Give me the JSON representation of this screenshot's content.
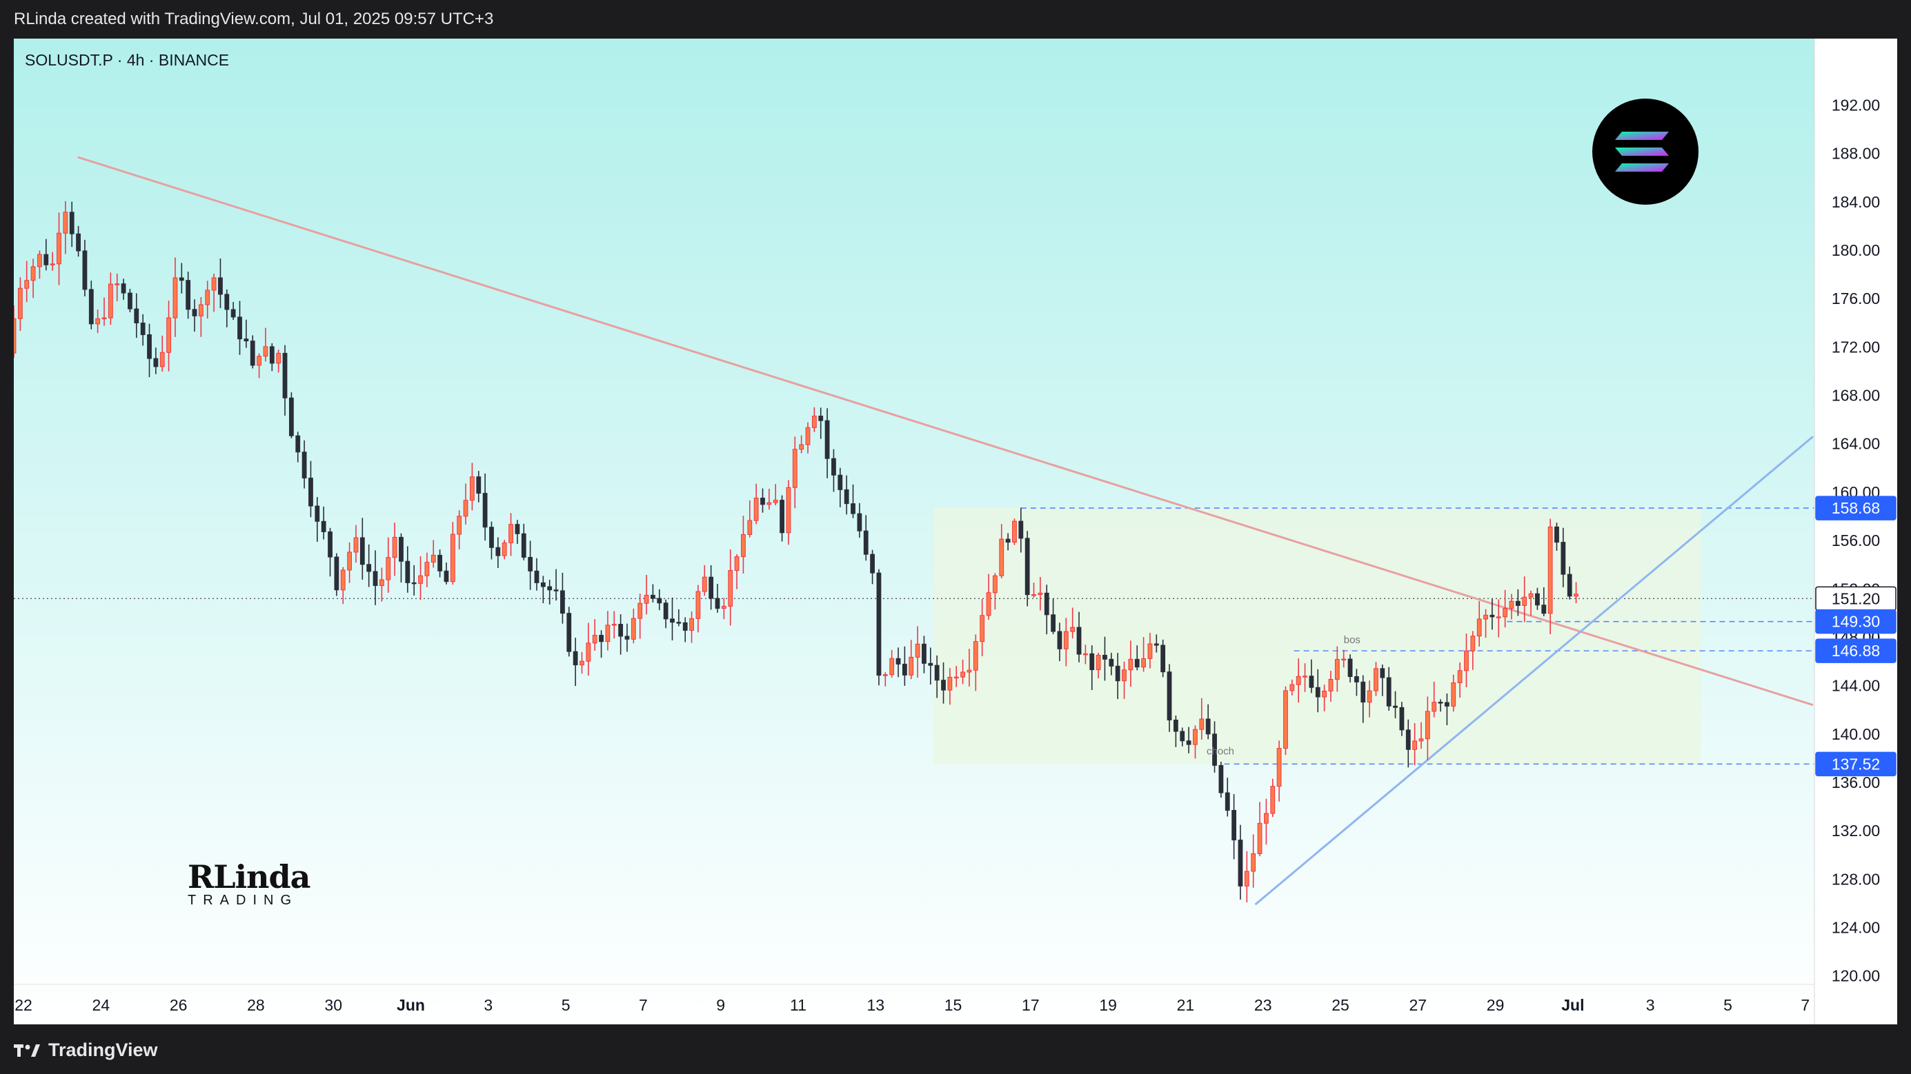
{
  "header": {
    "caption": "RLinda created with TradingView.com, Jul 01, 2025 09:57 UTC+3"
  },
  "symbol": {
    "label": "SOLUSDT.P · 4h · BINANCE"
  },
  "footer": {
    "brand": "TradingView"
  },
  "watermark": {
    "main": "RLinda",
    "sub": "TRADING"
  },
  "colors": {
    "up": "#f23645",
    "up_fill": "#ff7b4a",
    "down": "#2a2e39",
    "trend_down": "#e8a0a0",
    "trend_up": "#8fb6f0",
    "level": "#2962ff",
    "bg_top": "#b2f0ec",
    "bg_bottom": "#ffffff",
    "zone": "#eaf7e4"
  },
  "chart_data": {
    "type": "candlestick",
    "ylim": [
      119.3,
      197.5
    ],
    "yticks": [
      "192.00",
      "188.00",
      "184.00",
      "180.00",
      "176.00",
      "172.00",
      "168.00",
      "164.00",
      "160.00",
      "156.00",
      "152.00",
      "148.00",
      "144.00",
      "140.00",
      "136.00",
      "132.00",
      "128.00",
      "124.00",
      "120.00"
    ],
    "xticks": [
      "22",
      "24",
      "26",
      "28",
      "30",
      "Jun",
      "3",
      "5",
      "7",
      "9",
      "11",
      "13",
      "15",
      "17",
      "19",
      "21",
      "23",
      "25",
      "27",
      "29",
      "Jul",
      "3",
      "5",
      "7"
    ],
    "xtick_days": [
      -9,
      -7,
      -5,
      -3,
      -1,
      1,
      3,
      5,
      7,
      9,
      11,
      13,
      15,
      17,
      19,
      21,
      23,
      25,
      27,
      29,
      31,
      33,
      35,
      37
    ],
    "x_start_day": -9.25,
    "x_end_day": 37.2,
    "price_tags": [
      {
        "label": "158.68",
        "value": 158.68,
        "style": "level"
      },
      {
        "label": "151.20",
        "value": 151.2,
        "style": "current"
      },
      {
        "label": "149.30",
        "value": 149.3,
        "style": "level"
      },
      {
        "label": "146.88",
        "value": 146.88,
        "style": "level"
      },
      {
        "label": "137.52",
        "value": 137.52,
        "style": "level"
      }
    ],
    "hidden_tag": "148.00",
    "current_price": 151.2,
    "annotations": [
      {
        "text": "bos",
        "day": 25.3,
        "price": 147.5
      },
      {
        "text": "choch",
        "day": 21.9,
        "price": 138.3
      }
    ],
    "trendlines": [
      {
        "name": "descending",
        "from": {
          "day": -7.6,
          "price": 187.7
        },
        "to": {
          "day": 37.2,
          "price": 142.4
        }
      },
      {
        "name": "ascending",
        "from": {
          "day": 22.8,
          "price": 125.9
        },
        "to": {
          "day": 37.2,
          "price": 164.6
        }
      }
    ],
    "zone": {
      "day_from": 14.5,
      "day_to": 26.8,
      "price_low": 137.5,
      "price_high": 158.7,
      "extend_to_day": 34.3
    },
    "levels_start_day": {
      "158.68": 16.75,
      "149.30": 29.3,
      "146.88": 23.8,
      "137.52": 22.0
    },
    "anchors": [
      {
        "day": -9.25,
        "price": 171.5
      },
      {
        "day": -8.9,
        "price": 177.5
      },
      {
        "day": -8.4,
        "price": 179.5
      },
      {
        "day": -8.0,
        "price": 178.6
      },
      {
        "day": -7.85,
        "price": 184.8
      },
      {
        "day": -7.6,
        "price": 182.0
      },
      {
        "day": -7.4,
        "price": 179.5
      },
      {
        "day": -7.15,
        "price": 173.8
      },
      {
        "day": -6.85,
        "price": 174.0
      },
      {
        "day": -6.5,
        "price": 177.5
      },
      {
        "day": -6.2,
        "price": 176.0
      },
      {
        "day": -5.9,
        "price": 174.0
      },
      {
        "day": -5.65,
        "price": 171.3
      },
      {
        "day": -5.35,
        "price": 170.2
      },
      {
        "day": -5.1,
        "price": 174.5
      },
      {
        "day": -4.85,
        "price": 178.0
      },
      {
        "day": -4.55,
        "price": 175.5
      },
      {
        "day": -4.3,
        "price": 174.5
      },
      {
        "day": -4.0,
        "price": 178.5
      },
      {
        "day": -3.7,
        "price": 176.0
      },
      {
        "day": -3.4,
        "price": 173.8
      },
      {
        "day": -3.1,
        "price": 172.5
      },
      {
        "day": -2.9,
        "price": 169.8
      },
      {
        "day": -2.7,
        "price": 172.5
      },
      {
        "day": -2.45,
        "price": 170.5
      },
      {
        "day": -2.25,
        "price": 171.5
      },
      {
        "day": -2.05,
        "price": 167.5
      },
      {
        "day": -1.85,
        "price": 164.0
      },
      {
        "day": -1.5,
        "price": 161.0
      },
      {
        "day": -1.3,
        "price": 157.5
      },
      {
        "day": -1.0,
        "price": 156.0
      },
      {
        "day": -0.75,
        "price": 152.5
      },
      {
        "day": -0.5,
        "price": 154.5
      },
      {
        "day": -0.3,
        "price": 156.0
      },
      {
        "day": 0.0,
        "price": 154.0
      },
      {
        "day": 0.3,
        "price": 152.0
      },
      {
        "day": 0.5,
        "price": 153.5
      },
      {
        "day": 0.8,
        "price": 156.0
      },
      {
        "day": 1.05,
        "price": 152.5
      },
      {
        "day": 1.3,
        "price": 152.0
      },
      {
        "day": 1.6,
        "price": 155.0
      },
      {
        "day": 1.85,
        "price": 153.5
      },
      {
        "day": 2.1,
        "price": 152.5
      },
      {
        "day": 2.3,
        "price": 157.0
      },
      {
        "day": 2.55,
        "price": 159.5
      },
      {
        "day": 2.8,
        "price": 161.0
      },
      {
        "day": 3.1,
        "price": 157.0
      },
      {
        "day": 3.4,
        "price": 155.0
      },
      {
        "day": 3.75,
        "price": 157.0
      },
      {
        "day": 4.0,
        "price": 155.5
      },
      {
        "day": 4.25,
        "price": 154.0
      },
      {
        "day": 4.55,
        "price": 152.5
      },
      {
        "day": 4.9,
        "price": 151.5
      },
      {
        "day": 5.2,
        "price": 148.0
      },
      {
        "day": 5.45,
        "price": 145.0
      },
      {
        "day": 5.75,
        "price": 148.0
      },
      {
        "day": 6.1,
        "price": 147.5
      },
      {
        "day": 6.45,
        "price": 149.5
      },
      {
        "day": 6.75,
        "price": 147.5
      },
      {
        "day": 7.1,
        "price": 151.5
      },
      {
        "day": 7.5,
        "price": 150.5
      },
      {
        "day": 7.9,
        "price": 149.5
      },
      {
        "day": 8.3,
        "price": 148.5
      },
      {
        "day": 8.7,
        "price": 153.0
      },
      {
        "day": 9.2,
        "price": 150.5
      },
      {
        "day": 9.55,
        "price": 155.0
      },
      {
        "day": 9.8,
        "price": 156.0
      },
      {
        "day": 10.1,
        "price": 160.0
      },
      {
        "day": 10.35,
        "price": 158.0
      },
      {
        "day": 10.55,
        "price": 159.5
      },
      {
        "day": 10.75,
        "price": 157.0
      },
      {
        "day": 11.0,
        "price": 163.0
      },
      {
        "day": 11.25,
        "price": 164.5
      },
      {
        "day": 11.5,
        "price": 166.5
      },
      {
        "day": 11.7,
        "price": 167.3
      },
      {
        "day": 11.85,
        "price": 163.5
      },
      {
        "day": 12.1,
        "price": 161.0
      },
      {
        "day": 12.4,
        "price": 159.5
      },
      {
        "day": 12.7,
        "price": 157.5
      },
      {
        "day": 12.95,
        "price": 154.0
      },
      {
        "day": 13.15,
        "price": 152.5
      },
      {
        "day": 13.25,
        "price": 144.5
      },
      {
        "day": 13.6,
        "price": 146.0
      },
      {
        "day": 13.95,
        "price": 145.5
      },
      {
        "day": 14.3,
        "price": 147.0
      },
      {
        "day": 14.6,
        "price": 145.0
      },
      {
        "day": 14.95,
        "price": 144.0
      },
      {
        "day": 15.3,
        "price": 145.5
      },
      {
        "day": 15.6,
        "price": 146.0
      },
      {
        "day": 15.9,
        "price": 150.0
      },
      {
        "day": 16.2,
        "price": 153.0
      },
      {
        "day": 16.45,
        "price": 156.0
      },
      {
        "day": 16.7,
        "price": 157.0
      },
      {
        "day": 16.95,
        "price": 156.5
      },
      {
        "day": 17.1,
        "price": 151.5
      },
      {
        "day": 17.35,
        "price": 152.5
      },
      {
        "day": 17.6,
        "price": 149.0
      },
      {
        "day": 17.9,
        "price": 147.5
      },
      {
        "day": 18.2,
        "price": 148.5
      },
      {
        "day": 18.5,
        "price": 146.5
      },
      {
        "day": 18.8,
        "price": 145.5
      },
      {
        "day": 19.1,
        "price": 146.5
      },
      {
        "day": 19.4,
        "price": 144.0
      },
      {
        "day": 19.7,
        "price": 146.0
      },
      {
        "day": 20.0,
        "price": 145.0
      },
      {
        "day": 20.25,
        "price": 147.5
      },
      {
        "day": 20.5,
        "price": 148.0
      },
      {
        "day": 20.7,
        "price": 142.0
      },
      {
        "day": 20.9,
        "price": 140.5
      },
      {
        "day": 21.2,
        "price": 139.5
      },
      {
        "day": 21.45,
        "price": 140.5
      },
      {
        "day": 21.7,
        "price": 141.0
      },
      {
        "day": 21.9,
        "price": 137.0
      },
      {
        "day": 22.1,
        "price": 135.0
      },
      {
        "day": 22.35,
        "price": 132.5
      },
      {
        "day": 22.55,
        "price": 127.5
      },
      {
        "day": 22.8,
        "price": 128.5
      },
      {
        "day": 23.0,
        "price": 131.5
      },
      {
        "day": 23.25,
        "price": 134.0
      },
      {
        "day": 23.5,
        "price": 135.5
      },
      {
        "day": 23.6,
        "price": 139.0
      },
      {
        "day": 23.75,
        "price": 143.0
      },
      {
        "day": 24.0,
        "price": 144.0
      },
      {
        "day": 24.3,
        "price": 145.0
      },
      {
        "day": 24.6,
        "price": 143.5
      },
      {
        "day": 24.9,
        "price": 145.0
      },
      {
        "day": 25.2,
        "price": 146.0
      },
      {
        "day": 25.5,
        "price": 145.0
      },
      {
        "day": 25.8,
        "price": 143.0
      },
      {
        "day": 26.1,
        "price": 145.0
      },
      {
        "day": 26.4,
        "price": 143.0
      },
      {
        "day": 26.6,
        "price": 142.0
      },
      {
        "day": 26.8,
        "price": 139.0
      },
      {
        "day": 27.0,
        "price": 138.5
      },
      {
        "day": 27.3,
        "price": 140.5
      },
      {
        "day": 27.6,
        "price": 142.5
      },
      {
        "day": 27.9,
        "price": 142.0
      },
      {
        "day": 28.2,
        "price": 145.5
      },
      {
        "day": 28.5,
        "price": 147.0
      },
      {
        "day": 28.75,
        "price": 149.5
      },
      {
        "day": 29.1,
        "price": 150.0
      },
      {
        "day": 29.4,
        "price": 150.5
      },
      {
        "day": 29.7,
        "price": 151.0
      },
      {
        "day": 30.0,
        "price": 151.5
      },
      {
        "day": 30.25,
        "price": 150.0
      },
      {
        "day": 30.4,
        "price": 149.8
      },
      {
        "day": 30.55,
        "price": 157.5
      },
      {
        "day": 30.75,
        "price": 155.5
      },
      {
        "day": 31.0,
        "price": 152.5
      },
      {
        "day": 31.1,
        "price": 151.2
      }
    ]
  }
}
